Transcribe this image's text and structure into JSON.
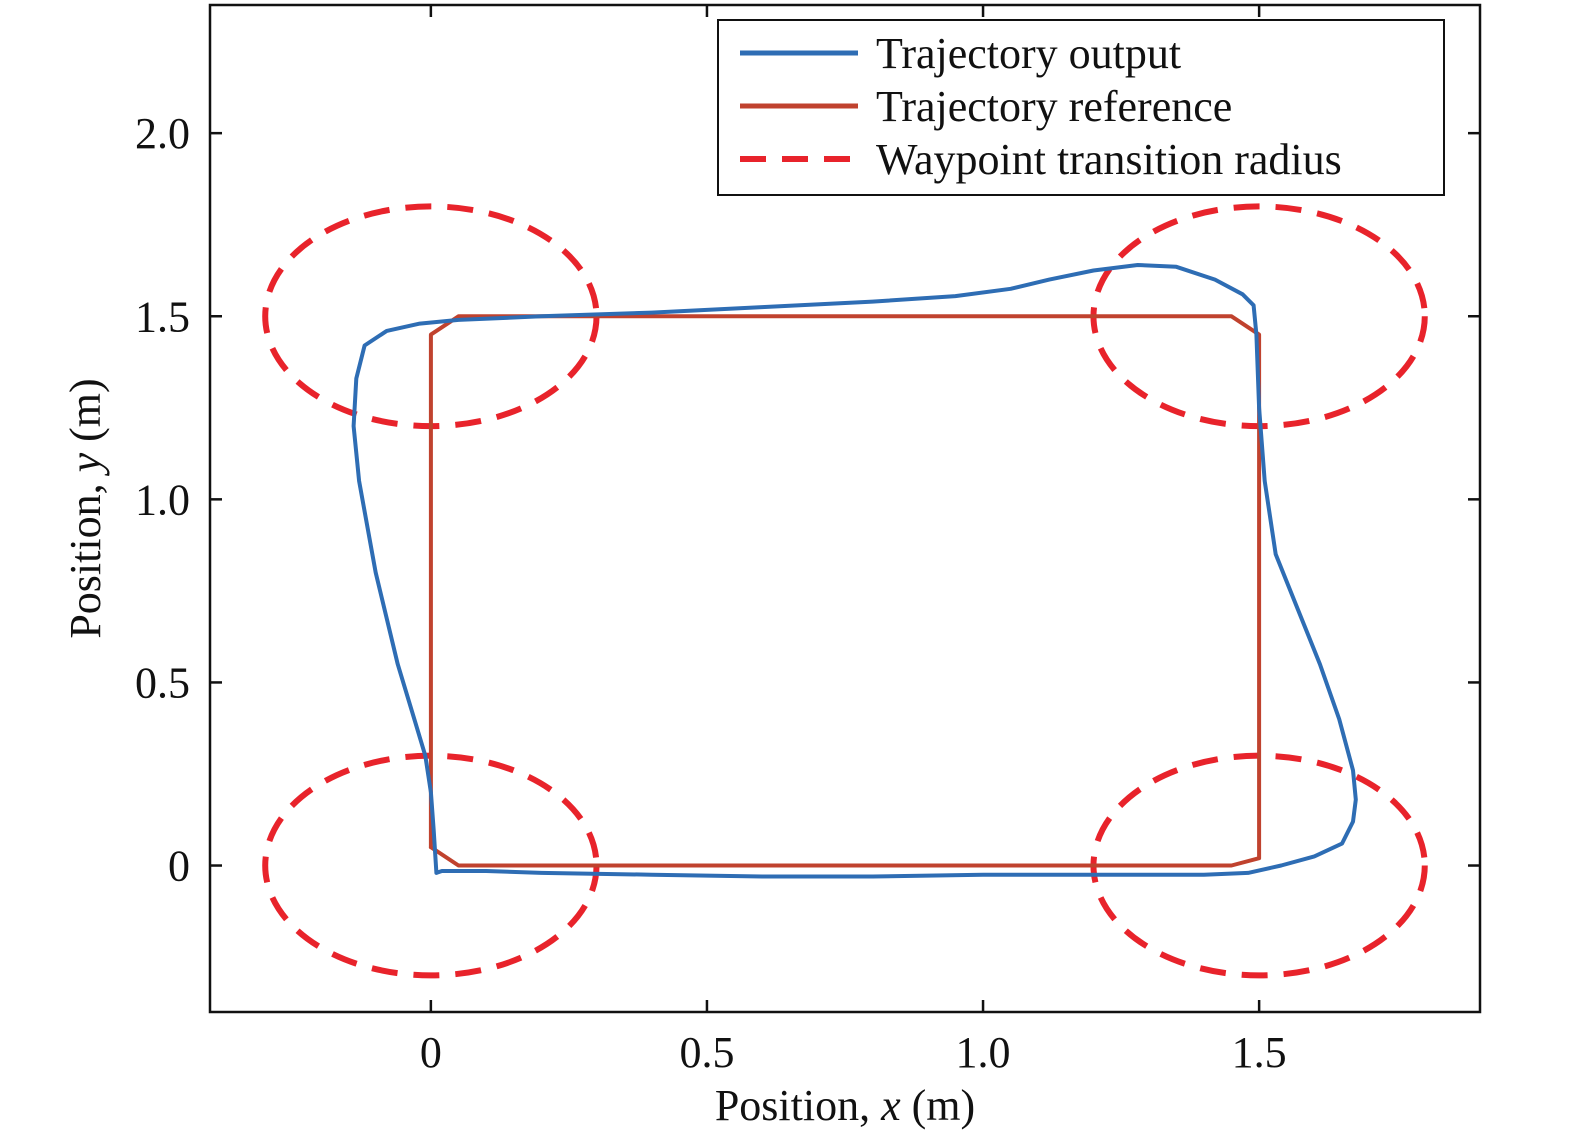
{
  "chart_data": {
    "type": "line",
    "title": "",
    "xlabel_prefix": "Position, ",
    "xlabel_var": "x",
    "xlabel_unit": " (m)",
    "ylabel_prefix": "Position, ",
    "ylabel_var": "y",
    "ylabel_unit": " (m)",
    "xlim": [
      -0.4,
      1.9
    ],
    "ylim": [
      -0.4,
      2.35
    ],
    "xticks": [
      {
        "value": 0,
        "label": "0"
      },
      {
        "value": 0.5,
        "label": "0.5"
      },
      {
        "value": 1.0,
        "label": "1.0"
      },
      {
        "value": 1.5,
        "label": "1.5"
      }
    ],
    "yticks": [
      {
        "value": 0,
        "label": "0"
      },
      {
        "value": 0.5,
        "label": "0.5"
      },
      {
        "value": 1.0,
        "label": "1.0"
      },
      {
        "value": 1.5,
        "label": "1.5"
      },
      {
        "value": 2.0,
        "label": "2.0"
      }
    ],
    "grid": false,
    "legend_position": "top-right",
    "series": [
      {
        "name": "Trajectory output",
        "color": "#2e6db4",
        "style": "solid",
        "x": [
          0.01,
          0.005,
          0.0,
          -0.01,
          -0.03,
          -0.06,
          -0.1,
          -0.13,
          -0.14,
          -0.135,
          -0.12,
          -0.08,
          -0.02,
          0.05,
          0.2,
          0.4,
          0.6,
          0.8,
          0.95,
          1.05,
          1.12,
          1.2,
          1.28,
          1.35,
          1.42,
          1.47,
          1.49,
          1.495,
          1.5,
          1.51,
          1.53,
          1.57,
          1.61,
          1.645,
          1.67,
          1.675,
          1.67,
          1.65,
          1.6,
          1.54,
          1.48,
          1.4,
          1.3,
          1.2,
          1.0,
          0.8,
          0.6,
          0.4,
          0.2,
          0.1,
          0.02,
          0.01
        ],
        "y": [
          -0.02,
          0.1,
          0.2,
          0.3,
          0.4,
          0.55,
          0.8,
          1.05,
          1.2,
          1.33,
          1.42,
          1.46,
          1.48,
          1.49,
          1.5,
          1.51,
          1.525,
          1.54,
          1.555,
          1.575,
          1.6,
          1.625,
          1.64,
          1.635,
          1.6,
          1.56,
          1.53,
          1.45,
          1.25,
          1.05,
          0.85,
          0.7,
          0.55,
          0.4,
          0.26,
          0.18,
          0.12,
          0.06,
          0.025,
          0.0,
          -0.02,
          -0.025,
          -0.025,
          -0.025,
          -0.025,
          -0.03,
          -0.03,
          -0.025,
          -0.02,
          -0.015,
          -0.015,
          -0.02
        ]
      },
      {
        "name": "Trajectory reference",
        "color": "#c0422e",
        "style": "solid",
        "x": [
          0.0,
          0.0,
          0.05,
          1.45,
          1.5,
          1.5,
          1.45,
          0.05,
          0.0
        ],
        "y": [
          0.05,
          1.45,
          1.5,
          1.5,
          1.45,
          0.02,
          0.0,
          0.0,
          0.05
        ]
      },
      {
        "name": "Waypoint transition radius",
        "color": "#e8232b",
        "style": "dashed",
        "radius": 0.3,
        "centers": [
          [
            0,
            1.5
          ],
          [
            1.5,
            1.5
          ],
          [
            0,
            0
          ],
          [
            1.5,
            0
          ]
        ]
      }
    ]
  }
}
